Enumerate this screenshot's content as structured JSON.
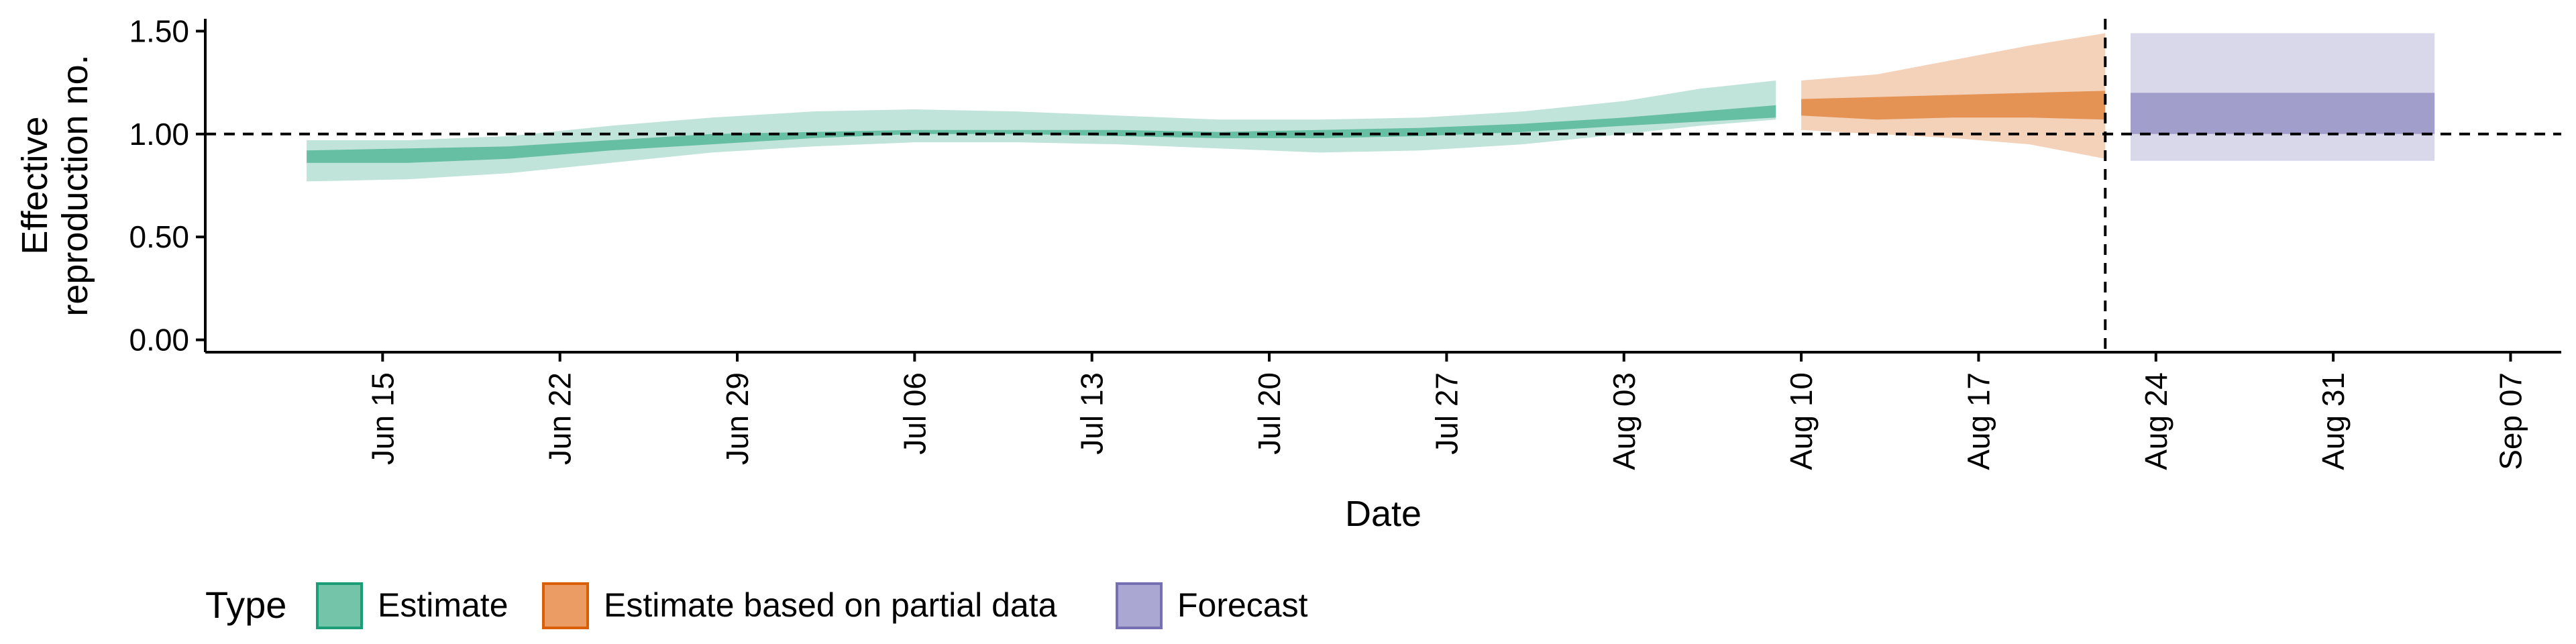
{
  "chart_data": {
    "type": "area",
    "title": "",
    "xlabel": "Date",
    "ylabel_lines": [
      "Effective",
      "reproduction no."
    ],
    "x_ticks": [
      "Jun 15",
      "Jun 22",
      "Jun 29",
      "Jul 06",
      "Jul 13",
      "Jul 20",
      "Jul 27",
      "Aug 03",
      "Aug 10",
      "Aug 17",
      "Aug 24",
      "Aug 31",
      "Sep 07"
    ],
    "x_tick_dates": [
      "2020-06-15",
      "2020-06-22",
      "2020-06-29",
      "2020-07-06",
      "2020-07-13",
      "2020-07-20",
      "2020-07-27",
      "2020-08-03",
      "2020-08-10",
      "2020-08-17",
      "2020-08-24",
      "2020-08-31",
      "2020-09-07"
    ],
    "xlim": [
      "2020-06-08",
      "2020-09-09"
    ],
    "y_ticks": [
      "0.00",
      "0.50",
      "1.00",
      "1.50"
    ],
    "ylim": [
      -0.06,
      1.56
    ],
    "hline": 1.0,
    "vline": "2020-08-22",
    "legend": {
      "title": "Type",
      "position": "bottom",
      "items": [
        {
          "label": "Estimate",
          "fill": "#73c4a9",
          "stroke": "#1b9e77"
        },
        {
          "label": "Estimate based on partial data",
          "fill": "#eb9c65",
          "stroke": "#d95f02"
        },
        {
          "label": "Forecast",
          "fill": "#aaa7d3",
          "stroke": "#7570b3"
        }
      ]
    },
    "series": [
      {
        "type_key": "estimate",
        "fill": "#1b9e77",
        "x": [
          "2020-06-12",
          "2020-06-16",
          "2020-06-20",
          "2020-06-24",
          "2020-06-28",
          "2020-07-02",
          "2020-07-06",
          "2020-07-10",
          "2020-07-14",
          "2020-07-18",
          "2020-07-22",
          "2020-07-26",
          "2020-07-30",
          "2020-08-03",
          "2020-08-06",
          "2020-08-09"
        ],
        "lower_90": [
          0.77,
          0.78,
          0.81,
          0.86,
          0.91,
          0.94,
          0.96,
          0.96,
          0.95,
          0.93,
          0.91,
          0.92,
          0.95,
          1.0,
          1.04,
          1.07
        ],
        "lower_50": [
          0.86,
          0.86,
          0.88,
          0.92,
          0.95,
          0.98,
          1.0,
          1.0,
          0.99,
          0.98,
          0.98,
          0.99,
          1.01,
          1.04,
          1.06,
          1.08
        ],
        "upper_50": [
          0.92,
          0.93,
          0.94,
          0.97,
          1.0,
          1.01,
          1.02,
          1.02,
          1.02,
          1.01,
          1.02,
          1.03,
          1.05,
          1.08,
          1.11,
          1.14
        ],
        "upper_90": [
          0.97,
          0.97,
          0.99,
          1.04,
          1.08,
          1.11,
          1.12,
          1.11,
          1.09,
          1.07,
          1.07,
          1.08,
          1.11,
          1.16,
          1.22,
          1.26
        ]
      },
      {
        "type_key": "partial",
        "fill": "#d95f02",
        "x": [
          "2020-08-10",
          "2020-08-13",
          "2020-08-16",
          "2020-08-19",
          "2020-08-22"
        ],
        "lower_90": [
          1.02,
          1.0,
          0.98,
          0.95,
          0.88
        ],
        "lower_50": [
          1.09,
          1.07,
          1.08,
          1.08,
          1.07
        ],
        "upper_50": [
          1.17,
          1.18,
          1.19,
          1.2,
          1.21
        ],
        "upper_90": [
          1.26,
          1.29,
          1.36,
          1.43,
          1.49
        ]
      },
      {
        "type_key": "forecast",
        "fill": "#7570b3",
        "x": [
          "2020-08-23",
          "2020-09-04"
        ],
        "lower_90": [
          0.87,
          0.87
        ],
        "lower_50": [
          1.0,
          1.0
        ],
        "upper_50": [
          1.2,
          1.2
        ],
        "upper_90": [
          1.49,
          1.49
        ]
      }
    ]
  }
}
